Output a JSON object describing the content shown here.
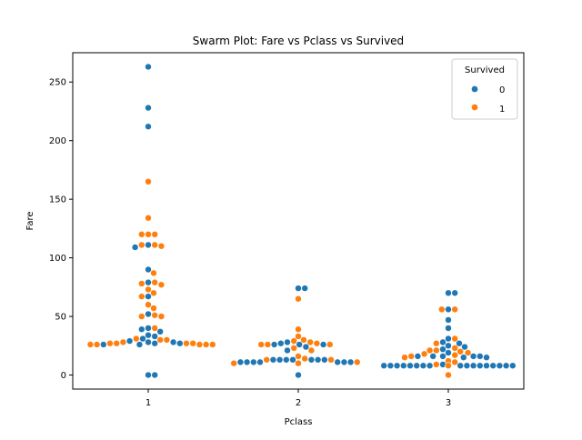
{
  "chart_data": {
    "type": "scatter",
    "subtype": "swarm",
    "title": "Swarm Plot: Fare vs Pclass vs Survived",
    "xlabel": "Pclass",
    "ylabel": "Fare",
    "categories": [
      "1",
      "2",
      "3"
    ],
    "ylim": [
      -12,
      275
    ],
    "yticks": [
      0,
      50,
      100,
      150,
      200,
      250
    ],
    "grid": false,
    "legend": {
      "title": "Survived",
      "placement": "top-right",
      "entries": [
        {
          "label": "0",
          "color": "#1f77b4"
        },
        {
          "label": "1",
          "color": "#ff7f0e"
        }
      ]
    },
    "series": [
      {
        "name": "0",
        "color": "#1f77b4",
        "points": [
          [
            "1",
            263
          ],
          [
            "1",
            228
          ],
          [
            "1",
            212
          ],
          [
            "1",
            111
          ],
          [
            "1",
            109
          ],
          [
            "1",
            90
          ],
          [
            "1",
            79
          ],
          [
            "1",
            67
          ],
          [
            "1",
            52
          ],
          [
            "1",
            40
          ],
          [
            "1",
            39
          ],
          [
            "1",
            37
          ],
          [
            "1",
            34
          ],
          [
            "1",
            33
          ],
          [
            "1",
            31
          ],
          [
            "1",
            29
          ],
          [
            "1",
            28
          ],
          [
            "1",
            28
          ],
          [
            "1",
            27
          ],
          [
            "1",
            27
          ],
          [
            "1",
            26
          ],
          [
            "1",
            26
          ],
          [
            "1",
            0
          ],
          [
            "1",
            0
          ],
          [
            "2",
            74
          ],
          [
            "2",
            74
          ],
          [
            "2",
            28
          ],
          [
            "2",
            27
          ],
          [
            "2",
            26
          ],
          [
            "2",
            26
          ],
          [
            "2",
            26
          ],
          [
            "2",
            24
          ],
          [
            "2",
            21
          ],
          [
            "2",
            13
          ],
          [
            "2",
            13
          ],
          [
            "2",
            13
          ],
          [
            "2",
            13
          ],
          [
            "2",
            13
          ],
          [
            "2",
            13
          ],
          [
            "2",
            13
          ],
          [
            "2",
            11
          ],
          [
            "2",
            11
          ],
          [
            "2",
            11
          ],
          [
            "2",
            11
          ],
          [
            "2",
            11
          ],
          [
            "2",
            11
          ],
          [
            "2",
            11
          ],
          [
            "2",
            10
          ],
          [
            "2",
            0
          ],
          [
            "3",
            70
          ],
          [
            "3",
            70
          ],
          [
            "3",
            56
          ],
          [
            "3",
            47
          ],
          [
            "3",
            40
          ],
          [
            "3",
            31
          ],
          [
            "3",
            28
          ],
          [
            "3",
            27
          ],
          [
            "3",
            25
          ],
          [
            "3",
            24
          ],
          [
            "3",
            22
          ],
          [
            "3",
            19
          ],
          [
            "3",
            16
          ],
          [
            "3",
            16
          ],
          [
            "3",
            16
          ],
          [
            "3",
            16
          ],
          [
            "3",
            16
          ],
          [
            "3",
            15
          ],
          [
            "3",
            15
          ],
          [
            "3",
            9
          ],
          [
            "3",
            8
          ],
          [
            "3",
            8
          ],
          [
            "3",
            8
          ],
          [
            "3",
            8
          ],
          [
            "3",
            8
          ],
          [
            "3",
            8
          ],
          [
            "3",
            8
          ],
          [
            "3",
            8
          ],
          [
            "3",
            8
          ],
          [
            "3",
            8
          ],
          [
            "3",
            8
          ],
          [
            "3",
            8
          ],
          [
            "3",
            8
          ],
          [
            "3",
            8
          ],
          [
            "3",
            8
          ],
          [
            "3",
            8
          ],
          [
            "3",
            8
          ],
          [
            "3",
            8
          ],
          [
            "3",
            8
          ],
          [
            "3",
            8
          ],
          [
            "3",
            8
          ],
          [
            "3",
            8
          ]
        ]
      },
      {
        "name": "1",
        "color": "#ff7f0e",
        "points": [
          [
            "1",
            165
          ],
          [
            "1",
            134
          ],
          [
            "1",
            120
          ],
          [
            "1",
            120
          ],
          [
            "1",
            120
          ],
          [
            "1",
            111
          ],
          [
            "1",
            111
          ],
          [
            "1",
            110
          ],
          [
            "1",
            87
          ],
          [
            "1",
            79
          ],
          [
            "1",
            78
          ],
          [
            "1",
            77
          ],
          [
            "1",
            73
          ],
          [
            "1",
            70
          ],
          [
            "1",
            67
          ],
          [
            "1",
            60
          ],
          [
            "1",
            57
          ],
          [
            "1",
            51
          ],
          [
            "1",
            50
          ],
          [
            "1",
            50
          ],
          [
            "1",
            40
          ],
          [
            "1",
            31
          ],
          [
            "1",
            30
          ],
          [
            "1",
            30
          ],
          [
            "1",
            28
          ],
          [
            "1",
            27
          ],
          [
            "1",
            27
          ],
          [
            "1",
            27
          ],
          [
            "1",
            27
          ],
          [
            "1",
            26
          ],
          [
            "1",
            26
          ],
          [
            "1",
            26
          ],
          [
            "1",
            26
          ],
          [
            "1",
            26
          ],
          [
            "2",
            65
          ],
          [
            "2",
            39
          ],
          [
            "2",
            33
          ],
          [
            "2",
            30
          ],
          [
            "2",
            29
          ],
          [
            "2",
            28
          ],
          [
            "2",
            27
          ],
          [
            "2",
            26
          ],
          [
            "2",
            26
          ],
          [
            "2",
            26
          ],
          [
            "2",
            23
          ],
          [
            "2",
            21
          ],
          [
            "2",
            16
          ],
          [
            "2",
            14
          ],
          [
            "2",
            13
          ],
          [
            "2",
            13
          ],
          [
            "2",
            11
          ],
          [
            "2",
            10
          ],
          [
            "2",
            10
          ],
          [
            "2",
            10
          ],
          [
            "2",
            10
          ],
          [
            "2",
            10
          ],
          [
            "2",
            10
          ],
          [
            "2",
            10
          ],
          [
            "3",
            56
          ],
          [
            "3",
            56
          ],
          [
            "3",
            31
          ],
          [
            "3",
            27
          ],
          [
            "3",
            23
          ],
          [
            "3",
            21
          ],
          [
            "3",
            21
          ],
          [
            "3",
            20
          ],
          [
            "3",
            19
          ],
          [
            "3",
            18
          ],
          [
            "3",
            17
          ],
          [
            "3",
            16
          ],
          [
            "3",
            15
          ],
          [
            "3",
            12
          ],
          [
            "3",
            11
          ],
          [
            "3",
            9
          ],
          [
            "3",
            8
          ],
          [
            "3",
            8
          ],
          [
            "3",
            8
          ],
          [
            "3",
            8
          ],
          [
            "3",
            8
          ],
          [
            "3",
            8
          ],
          [
            "3",
            8
          ],
          [
            "3",
            8
          ],
          [
            "3",
            8
          ],
          [
            "3",
            0
          ]
        ]
      }
    ]
  }
}
